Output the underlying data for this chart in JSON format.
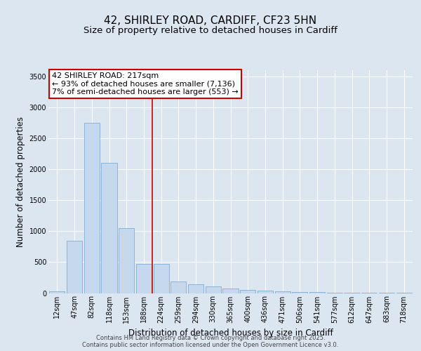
{
  "title_line1": "42, SHIRLEY ROAD, CARDIFF, CF23 5HN",
  "title_line2": "Size of property relative to detached houses in Cardiff",
  "xlabel": "Distribution of detached houses by size in Cardiff",
  "ylabel": "Number of detached properties",
  "bar_labels": [
    "12sqm",
    "47sqm",
    "82sqm",
    "118sqm",
    "153sqm",
    "188sqm",
    "224sqm",
    "259sqm",
    "294sqm",
    "330sqm",
    "365sqm",
    "400sqm",
    "436sqm",
    "471sqm",
    "506sqm",
    "541sqm",
    "577sqm",
    "612sqm",
    "647sqm",
    "683sqm",
    "718sqm"
  ],
  "bar_values": [
    30,
    850,
    2750,
    2100,
    1050,
    470,
    470,
    190,
    145,
    110,
    75,
    55,
    40,
    30,
    20,
    12,
    8,
    5,
    3,
    2,
    1
  ],
  "bar_color": "#c5d8ee",
  "bar_edge_color": "#7aaed6",
  "annotation_text_line1": "42 SHIRLEY ROAD: 217sqm",
  "annotation_text_line2": "← 93% of detached houses are smaller (7,136)",
  "annotation_text_line3": "7% of semi-detached houses are larger (553) →",
  "vline_color": "#cc0000",
  "vline_x_index": 6.0,
  "box_color": "#cc0000",
  "ylim": [
    0,
    3600
  ],
  "yticks": [
    0,
    500,
    1000,
    1500,
    2000,
    2500,
    3000,
    3500
  ],
  "bg_color": "#dce6f0",
  "plot_bg_color": "#dce6f0",
  "grid_color": "#ffffff",
  "footer_line1": "Contains HM Land Registry data © Crown copyright and database right 2025.",
  "footer_line2": "Contains public sector information licensed under the Open Government Licence v3.0.",
  "title_fontsize": 11,
  "subtitle_fontsize": 9.5,
  "tick_fontsize": 7,
  "ylabel_fontsize": 8.5,
  "xlabel_fontsize": 8.5,
  "annotation_fontsize": 8,
  "footer_fontsize": 6
}
